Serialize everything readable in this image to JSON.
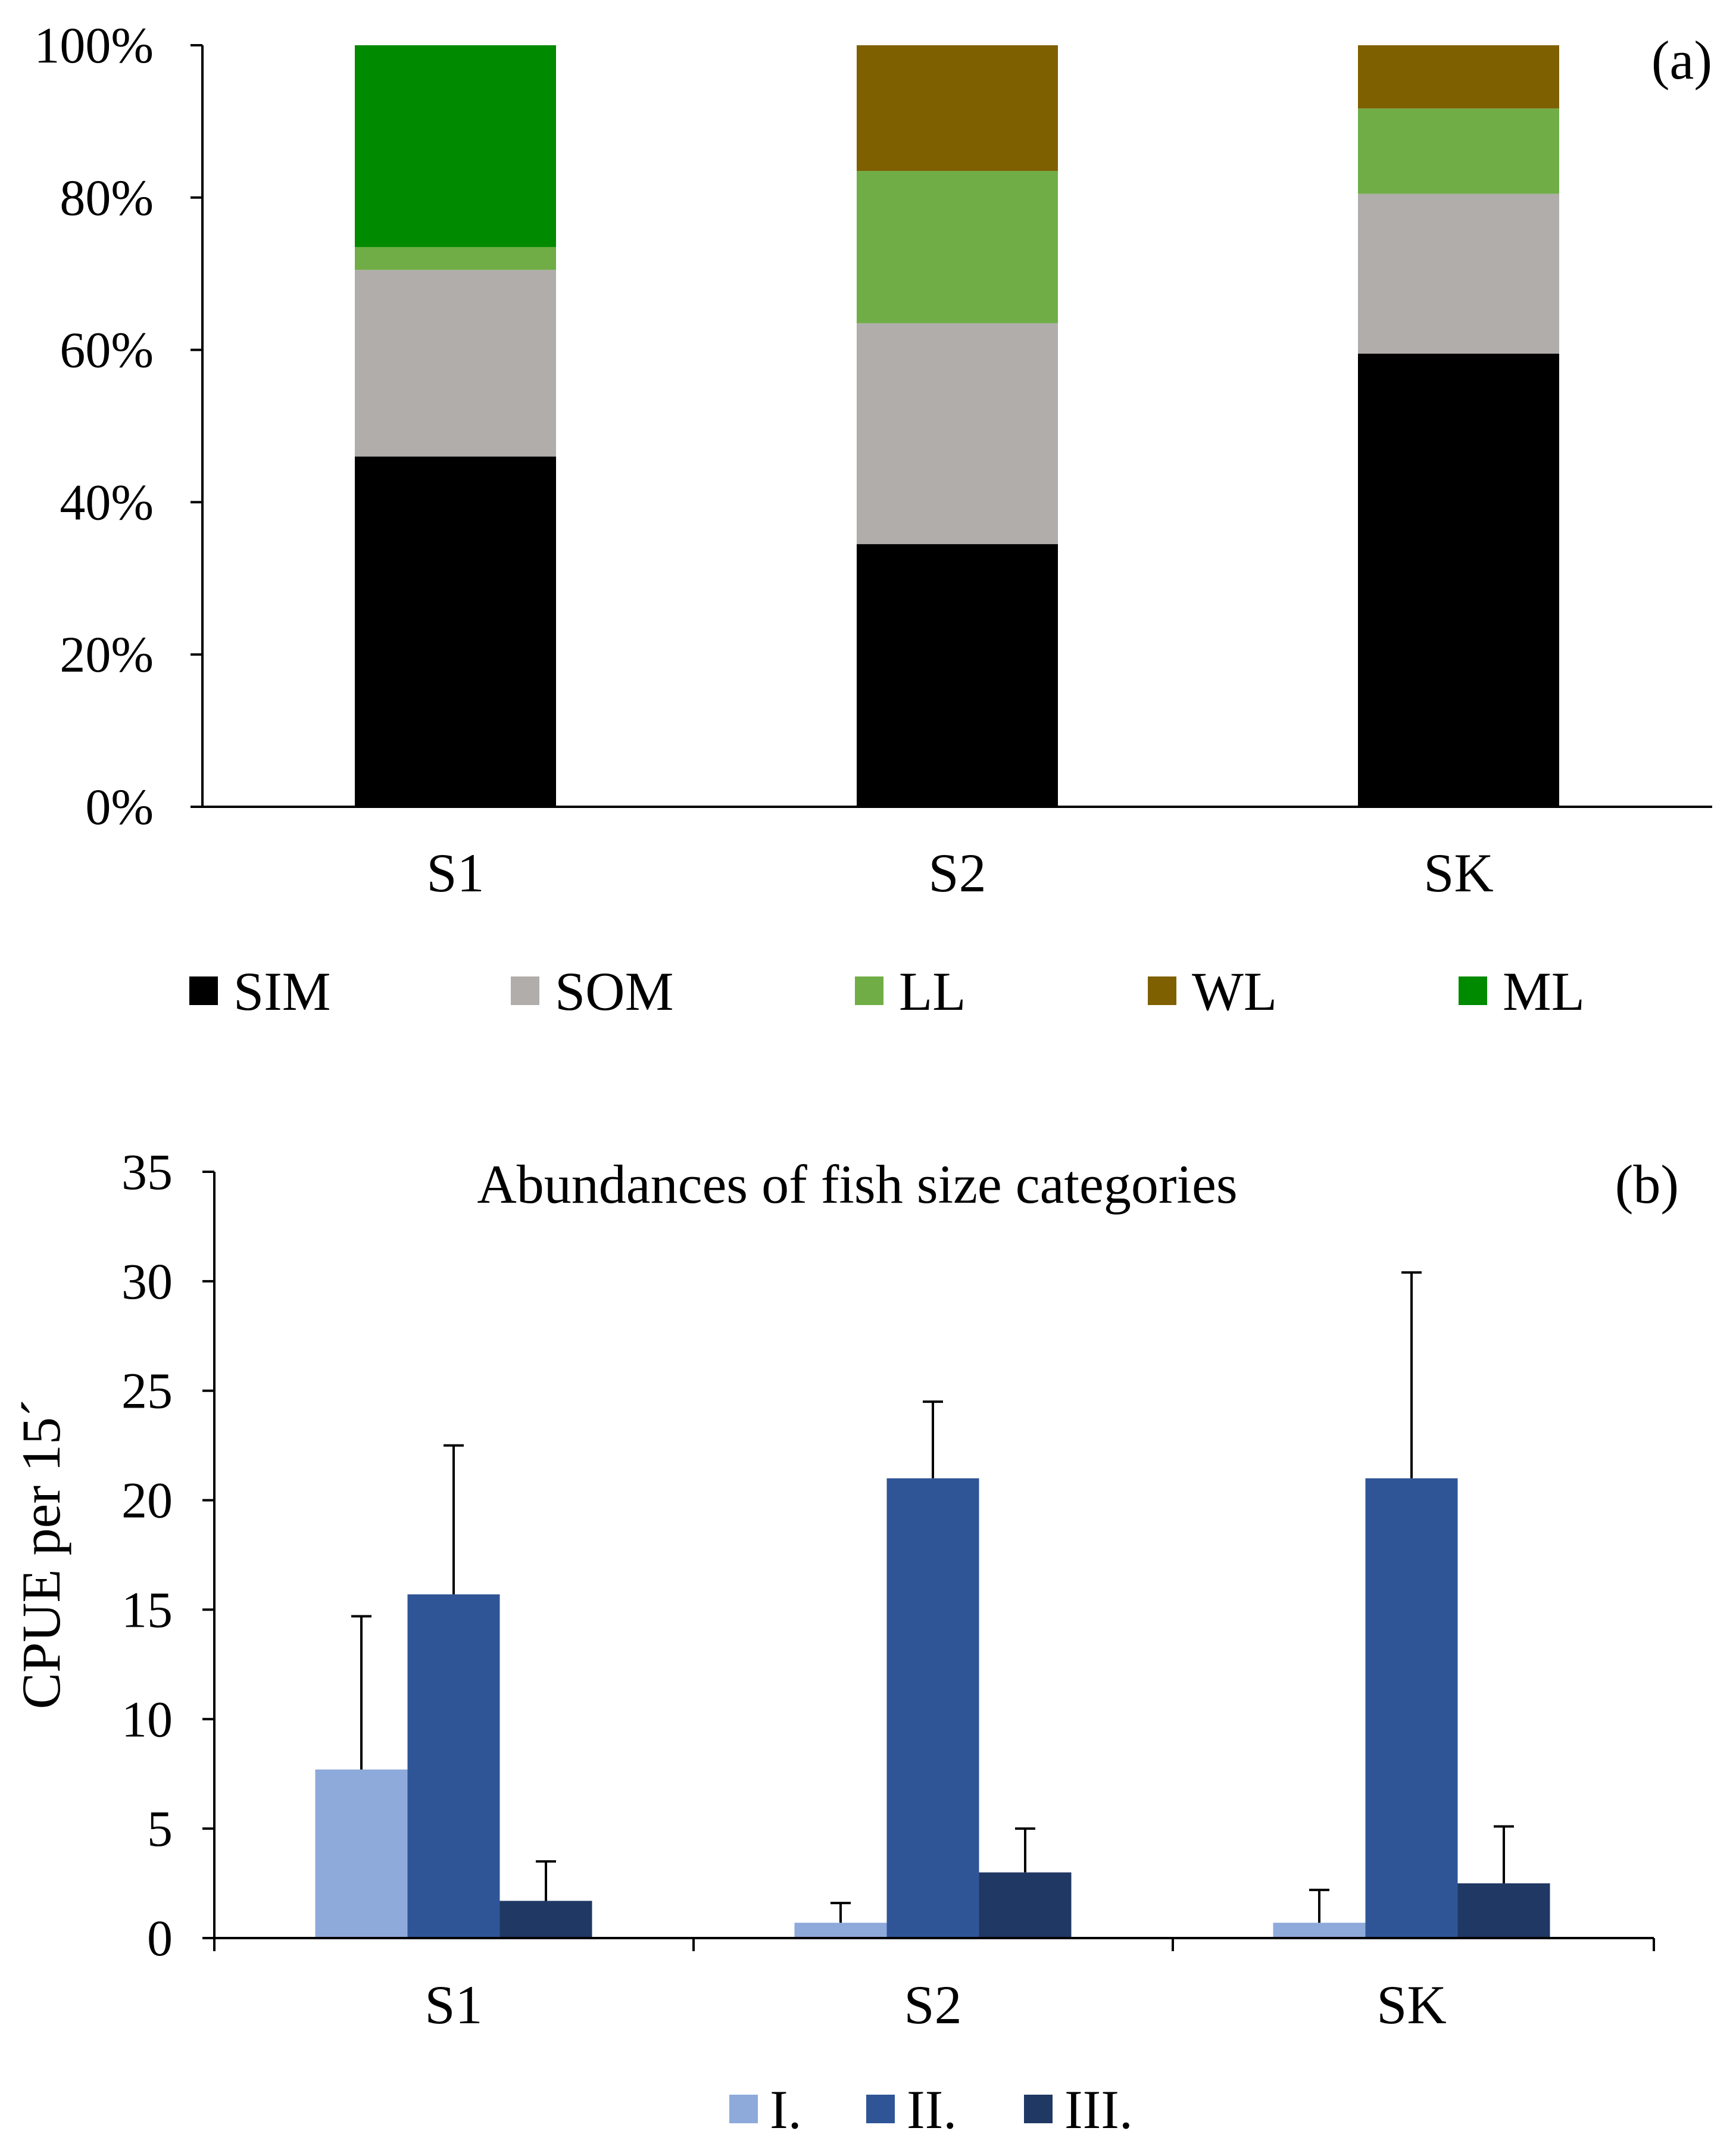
{
  "chart_data": [
    {
      "panel_label": "(a)",
      "type": "bar",
      "stacked": true,
      "categories": [
        "S1",
        "S2",
        "SK"
      ],
      "series": [
        {
          "name": "SIM",
          "color": "#000000",
          "values": [
            46,
            34.5,
            59.5
          ]
        },
        {
          "name": "SOM",
          "color": "#b0adab",
          "values": [
            24.5,
            29,
            21
          ]
        },
        {
          "name": "LL",
          "color": "#70ad47",
          "values": [
            3,
            20,
            11.2
          ]
        },
        {
          "name": "WL",
          "color": "#7f6000",
          "values": [
            0,
            16.5,
            8.3
          ]
        },
        {
          "name": "ML",
          "color": "#008a00",
          "values": [
            26.5,
            0,
            0
          ]
        }
      ],
      "ylim": [
        0,
        100
      ],
      "yticks": [
        "0%",
        "20%",
        "40%",
        "60%",
        "80%",
        "100%"
      ],
      "ytick_values": [
        0,
        20,
        40,
        60,
        80,
        100
      ],
      "grid": false,
      "legend_position": "bottom"
    },
    {
      "panel_label": "(b)",
      "type": "bar",
      "title": "Abundances of fish size categories",
      "ylabel": "CPUE per 15´",
      "categories": [
        "S1",
        "S2",
        "SK"
      ],
      "series": [
        {
          "name": "I.",
          "color": "#8eaadb",
          "values": [
            7.7,
            0.7,
            0.7
          ],
          "error": [
            7.0,
            0.9,
            1.5
          ]
        },
        {
          "name": "II.",
          "color": "#2f5597",
          "values": [
            15.7,
            21.0,
            21.0
          ],
          "error": [
            6.8,
            3.5,
            9.4
          ]
        },
        {
          "name": "III.",
          "color": "#203864",
          "values": [
            1.7,
            3.0,
            2.5
          ],
          "error": [
            1.8,
            2.0,
            2.6
          ]
        }
      ],
      "ylim": [
        0,
        35
      ],
      "yticks": [
        "0",
        "5",
        "10",
        "15",
        "20",
        "25",
        "30",
        "35"
      ],
      "ytick_values": [
        0,
        5,
        10,
        15,
        20,
        25,
        30,
        35
      ],
      "grid": false,
      "legend_position": "bottom"
    }
  ]
}
